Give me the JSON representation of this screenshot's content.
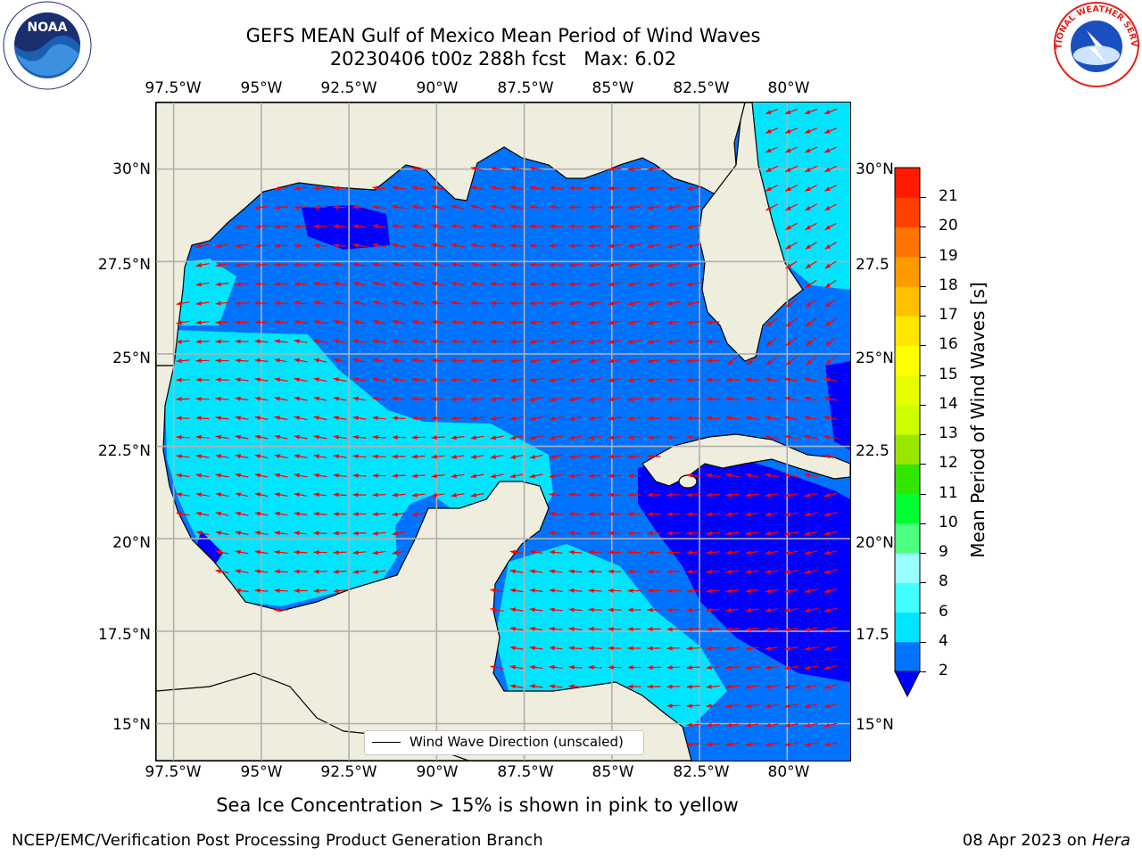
{
  "title": {
    "line1": "GEFS MEAN Gulf of Mexico Mean Period of Wind Waves",
    "line2": "20230406 t00z 288h fcst   Max: 6.02"
  },
  "logos": {
    "noaa": "NOAA",
    "nws": "NATIONAL WEATHER SERVICE"
  },
  "map": {
    "lon_ticks": [
      "97.5°W",
      "95°W",
      "92.5°W",
      "90°W",
      "87.5°W",
      "85°W",
      "82.5°W",
      "80°W"
    ],
    "lat_ticks_left": [
      "30°N",
      "27.5°N",
      "25°N",
      "22.5°N",
      "20°N",
      "17.5°N",
      "15°N"
    ],
    "lat_ticks_right": [
      "30°N",
      "27.5",
      "25°N",
      "22.5",
      "20°N",
      "17.5",
      "15°N"
    ],
    "lon_range": [
      -98,
      -78.2
    ],
    "lat_range": [
      14.0,
      31.8
    ],
    "land_color": "#efedde",
    "grid_color": "#b0b0b0",
    "arrow_color": "#ff0000",
    "legend_label": "Wind Wave Direction (unscaled)"
  },
  "colorbar": {
    "label": "Mean Period of Wind Waves [s]",
    "ticks": [
      "2",
      "4",
      "6",
      "8",
      "9",
      "10",
      "11",
      "12",
      "13",
      "14",
      "15",
      "16",
      "17",
      "18",
      "19",
      "20",
      "21"
    ],
    "colors": [
      "#0073ff",
      "#00e5ff",
      "#42ffff",
      "#99ffff",
      "#4dff80",
      "#00ff33",
      "#33e600",
      "#99e600",
      "#ccff00",
      "#e6ff00",
      "#ffff00",
      "#ffe600",
      "#ffc000",
      "#ff9900",
      "#ff7300",
      "#ff4000",
      "#ff1a00"
    ],
    "under_color": "#0000ff"
  },
  "footer": {
    "left": "NCEP/EMC/Verification Post Processing Product Generation Branch",
    "right_date": "08 Apr 2023 on ",
    "right_machine": "Hera",
    "ice_note": "Sea Ice Concentration > 15% is shown in pink to yellow"
  }
}
